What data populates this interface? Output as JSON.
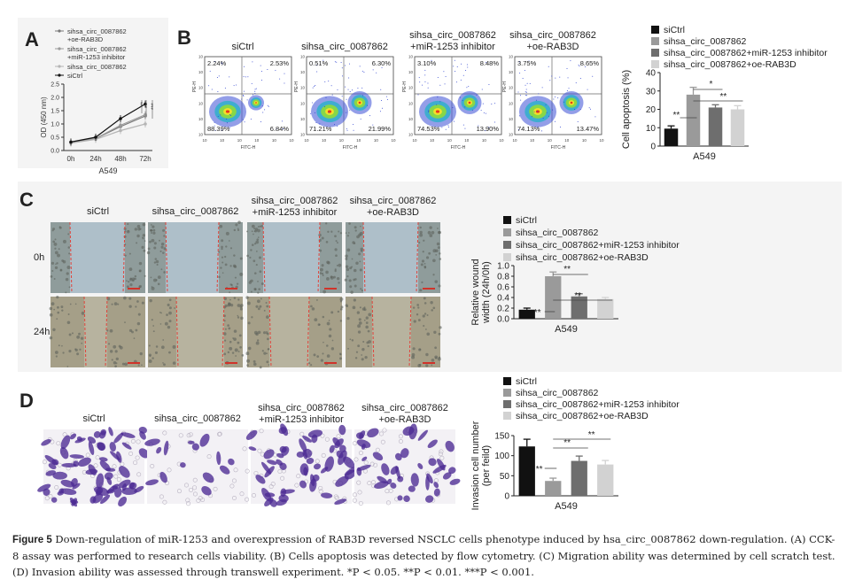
{
  "panel_A": {
    "letter": "A",
    "legend": [
      "sihsa_circ_0087862",
      "+oe-RAB3D",
      "sihsa_circ_0087862",
      "+miR-1253 inhibitor",
      "sihsa_circ_0087862",
      "siCtrl"
    ],
    "sig": [
      "**",
      "**",
      "***"
    ],
    "chart_data": {
      "type": "line",
      "x": [
        "0h",
        "24h",
        "48h",
        "72h"
      ],
      "xlabel": "A549",
      "ylabel": "OD (450 nm)",
      "ylim": [
        0,
        2.5
      ],
      "yticks": [
        "0.0",
        "0.5",
        "1.0",
        "1.5",
        "2.0",
        "2.5"
      ],
      "series": [
        {
          "name": "sihsa_circ_0087862 +oe-RAB3D",
          "values": [
            0.3,
            0.45,
            0.9,
            1.3
          ],
          "color": "#777777"
        },
        {
          "name": "sihsa_circ_0087862 +miR-1253 inhibitor",
          "values": [
            0.3,
            0.45,
            0.95,
            1.35
          ],
          "color": "#9a9a9a"
        },
        {
          "name": "sihsa_circ_0087862",
          "values": [
            0.28,
            0.42,
            0.75,
            1.0
          ],
          "color": "#b5b5b5"
        },
        {
          "name": "siCtrl",
          "values": [
            0.32,
            0.5,
            1.2,
            1.75
          ],
          "color": "#111111"
        }
      ]
    }
  },
  "panel_B": {
    "letter": "B",
    "plots": [
      {
        "title": "siCtrl",
        "q": [
          "2.24%",
          "2.53%",
          "88.39%",
          "6.84%"
        ]
      },
      {
        "title": "sihsa_circ_0087862",
        "q": [
          "0.51%",
          "6.30%",
          "71.21%",
          "21.99%"
        ]
      },
      {
        "title": "sihsa_circ_0087862\n+miR-1253 inhibitor",
        "q": [
          "3.10%",
          "8.48%",
          "74.53%",
          "13.90%"
        ]
      },
      {
        "title": "sihsa_circ_0087862\n+oe-RAB3D",
        "q": [
          "3.75%",
          "8.65%",
          "74.13%",
          "13.47%"
        ]
      }
    ],
    "xaxis": "FITC-H",
    "yaxis": "PE-H",
    "legend": [
      "siCtrl",
      "sihsa_circ_0087862",
      "sihsa_circ_0087862+miR-1253 inhibitor",
      "sihsa_circ_0087862+oe-RAB3D"
    ],
    "sig": [
      "**",
      "*",
      "**"
    ],
    "chart_data": {
      "type": "bar",
      "categories": [
        "siCtrl",
        "sihsa_circ_0087862",
        "sihsa_circ_0087862+miR-1253 inhibitor",
        "sihsa_circ_0087862+oe-RAB3D"
      ],
      "values": [
        9.5,
        28,
        21,
        20
      ],
      "errors": [
        1.5,
        4,
        1.5,
        2
      ],
      "colors": [
        "#111111",
        "#9a9a9a",
        "#6e6e6e",
        "#d2d2d2"
      ],
      "xlabel": "A549",
      "ylabel": "Cell apoptosis (%)",
      "ylim": [
        0,
        40
      ],
      "yticks": [
        "0",
        "10",
        "20",
        "30",
        "40"
      ]
    }
  },
  "panel_C": {
    "letter": "C",
    "col_titles": [
      "siCtrl",
      "sihsa_circ_0087862",
      "sihsa_circ_0087862\n+miR-1253 inhibitor",
      "sihsa_circ_0087862\n+oe-RAB3D"
    ],
    "row_labels": [
      "0h",
      "24h"
    ],
    "legend": [
      "siCtrl",
      "sihsa_circ_0087862",
      "sihsa_circ_0087862+miR-1253 inhibitor",
      "sihsa_circ_0087862+oe-RAB3D"
    ],
    "sig": [
      "**",
      "**",
      "**"
    ],
    "chart_data": {
      "type": "bar",
      "categories": [
        "siCtrl",
        "sihsa_circ_0087862",
        "sihsa_circ_0087862+miR-1253 inhibitor",
        "sihsa_circ_0087862+oe-RAB3D"
      ],
      "values": [
        0.17,
        0.8,
        0.42,
        0.37
      ],
      "errors": [
        0.03,
        0.08,
        0.05,
        0.03
      ],
      "colors": [
        "#111111",
        "#9a9a9a",
        "#6e6e6e",
        "#d2d2d2"
      ],
      "xlabel": "A549",
      "ylabel": "Relative wound width (24h/0h)",
      "ylim": [
        0,
        1.0
      ],
      "yticks": [
        "0.0",
        "0.2",
        "0.4",
        "0.6",
        "0.8",
        "1.0"
      ]
    }
  },
  "panel_D": {
    "letter": "D",
    "col_titles": [
      "siCtrl",
      "sihsa_circ_0087862",
      "sihsa_circ_0087862\n+miR-1253 inhibitor",
      "sihsa_circ_0087862\n+oe-RAB3D"
    ],
    "legend": [
      "siCtrl",
      "sihsa_circ_0087862",
      "sihsa_circ_0087862+miR-1253 inhibitor",
      "sihsa_circ_0087862+oe-RAB3D"
    ],
    "sig": [
      "**",
      "**",
      "**"
    ],
    "chart_data": {
      "type": "bar",
      "categories": [
        "siCtrl",
        "sihsa_circ_0087862",
        "sihsa_circ_0087862+miR-1253 inhibitor",
        "sihsa_circ_0087862+oe-RAB3D"
      ],
      "values": [
        123,
        37,
        87,
        78
      ],
      "errors": [
        18,
        7,
        12,
        10
      ],
      "colors": [
        "#111111",
        "#9a9a9a",
        "#6e6e6e",
        "#d2d2d2"
      ],
      "xlabel": "A549",
      "ylabel": "Invasion cell number (per feild)",
      "ylim": [
        0,
        150
      ],
      "yticks": [
        "0",
        "50",
        "100",
        "150"
      ]
    }
  },
  "caption": {
    "label": "Figure 5",
    "text": " Down-regulation of miR-1253 and overexpression of RAB3D reversed NSCLC cells phenotype induced by hsa_circ_0087862 down-regulation. (A) CCK-8 assay was performed to research cells viability. (B) Cells apoptosis was detected by flow cytometry. (C) Migration ability was determined by cell scratch test. (D) Invasion ability was assessed through transwell experiment. *P < 0.05. **P < 0.01. ***P < 0.001."
  }
}
